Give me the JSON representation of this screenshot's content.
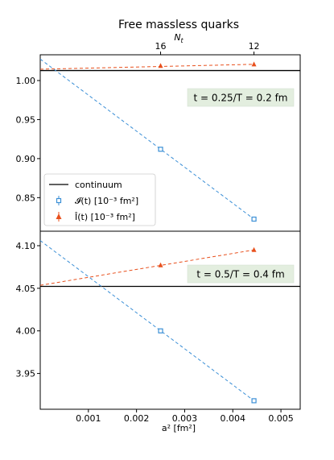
{
  "chart_data": {
    "title": "Free massless quarks",
    "xlabel": "a² [fm²]",
    "top_axis": {
      "label": "N_t",
      "ticks": [
        {
          "label": "16",
          "a2": 0.0025
        },
        {
          "label": "12",
          "a2": 0.00444
        }
      ]
    },
    "xlim": [
      0.0,
      0.0054
    ],
    "xticks": [
      0.001,
      0.002,
      0.003,
      0.004,
      0.005
    ],
    "xtick_labels": [
      "0.001",
      "0.002",
      "0.003",
      "0.004",
      "0.005"
    ],
    "legend": {
      "placement": "lower-left of upper panel",
      "entries": [
        {
          "label": "continuum",
          "kind": "line",
          "color": "#000000"
        },
        {
          "label": "𝓘(t) [10⁻³ fm²]",
          "kind": "open-square",
          "color": "#3b8fd6"
        },
        {
          "label": "Î(t) [10⁻³ fm²]",
          "kind": "triangle",
          "color": "#e8501d"
        }
      ]
    },
    "panels": [
      {
        "annotation": "t = 0.25/T = 0.2 fm",
        "ylim": [
          0.807,
          1.033
        ],
        "yticks": [
          0.85,
          0.9,
          0.95,
          1.0
        ],
        "ytick_labels": [
          "0.85",
          "0.90",
          "0.95",
          "1.00"
        ],
        "continuum": 1.0128,
        "series": [
          {
            "marker": "open-square",
            "color": "#3b8fd6",
            "x": [
              0.0025,
              0.00444
            ],
            "y": [
              0.912,
              0.8225
            ],
            "fit": {
              "from": [
                0.0,
                1.0275
              ],
              "to": [
                0.00444,
                0.8225
              ]
            }
          },
          {
            "marker": "triangle",
            "color": "#e8501d",
            "x": [
              0.0025,
              0.00444
            ],
            "y": [
              1.0188,
              1.0208
            ],
            "fit": {
              "from": [
                0.0,
                1.0145
              ],
              "to": [
                0.00444,
                1.0208
              ]
            }
          }
        ]
      },
      {
        "annotation": "t = 0.5/T = 0.4 fm",
        "ylim": [
          3.908,
          4.117
        ],
        "yticks": [
          3.95,
          4.0,
          4.05,
          4.1
        ],
        "ytick_labels": [
          "3.95",
          "4.00",
          "4.05",
          "4.10"
        ],
        "continuum": 4.0522,
        "series": [
          {
            "marker": "open-square",
            "color": "#3b8fd6",
            "x": [
              0.0025,
              0.00444
            ],
            "y": [
              4.0,
              3.918
            ],
            "fit": {
              "from": [
                0.0,
                4.106
              ],
              "to": [
                0.00444,
                3.918
              ]
            }
          },
          {
            "marker": "triangle",
            "color": "#e8501d",
            "x": [
              0.0025,
              0.00444
            ],
            "y": [
              4.077,
              4.095
            ],
            "fit": {
              "from": [
                0.0,
                4.0535
              ],
              "to": [
                0.00444,
                4.095
              ]
            }
          }
        ]
      }
    ]
  }
}
